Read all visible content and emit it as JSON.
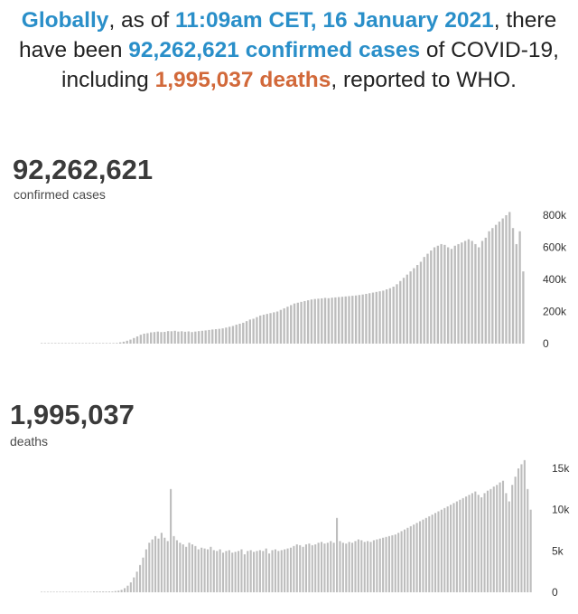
{
  "headline": {
    "globally": "Globally",
    "as_of": ", as of ",
    "datetime": "11:09am CET, 16 January 2021",
    "there_have_been": ", there have been ",
    "cases_text": "92,262,621 confirmed cases",
    "of_covid": " of COVID-19, including ",
    "deaths_text": "1,995,037 deaths",
    "reported": ", reported to WHO."
  },
  "colors": {
    "accent_blue": "#2a8fc9",
    "accent_orange": "#d2693a",
    "bar": "#bdbdbd"
  },
  "chart_data": [
    {
      "type": "bar",
      "title": "92,262,621",
      "subtitle": "confirmed cases",
      "ylim": [
        0,
        800000
      ],
      "yticks": [
        0,
        200000,
        400000,
        600000,
        800000
      ],
      "ytick_labels": [
        "0",
        "200k",
        "400k",
        "600k",
        "800k"
      ],
      "grid": false,
      "series": [
        {
          "values": [
            0,
            0,
            0,
            0,
            0,
            0,
            0,
            0,
            2000,
            3000,
            2000,
            1500,
            1500,
            1500,
            1000,
            1500,
            1500,
            1500,
            1500,
            1500,
            1500,
            3000,
            4000,
            8000,
            12000,
            18000,
            25000,
            35000,
            45000,
            55000,
            62000,
            65000,
            70000,
            72000,
            75000,
            72000,
            73000,
            78000,
            77000,
            80000,
            75000,
            77000,
            74000,
            76000,
            72000,
            75000,
            78000,
            80000,
            82000,
            85000,
            88000,
            90000,
            92000,
            95000,
            100000,
            105000,
            110000,
            118000,
            124000,
            130000,
            140000,
            150000,
            155000,
            165000,
            175000,
            180000,
            185000,
            190000,
            195000,
            200000,
            210000,
            220000,
            230000,
            240000,
            250000,
            255000,
            260000,
            265000,
            270000,
            275000,
            278000,
            280000,
            282000,
            285000,
            283000,
            286000,
            288000,
            290000,
            292000,
            294000,
            296000,
            298000,
            300000,
            303000,
            306000,
            310000,
            314000,
            318000,
            322000,
            326000,
            330000,
            338000,
            345000,
            355000,
            370000,
            390000,
            410000,
            430000,
            450000,
            470000,
            490000,
            510000,
            540000,
            560000,
            580000,
            600000,
            610000,
            620000,
            615000,
            600000,
            590000,
            610000,
            620000,
            630000,
            640000,
            650000,
            640000,
            620000,
            600000,
            640000,
            660000,
            700000,
            720000,
            740000,
            760000,
            780000,
            800000,
            820000,
            720000,
            620000,
            700000,
            450000
          ]
        }
      ]
    },
    {
      "type": "bar",
      "title": "1,995,037",
      "subtitle": "deaths",
      "ylim": [
        0,
        15000
      ],
      "yticks": [
        0,
        5000,
        10000,
        15000
      ],
      "ytick_labels": [
        "0",
        "5k",
        "10k",
        "15k"
      ],
      "grid": false,
      "series": [
        {
          "values": [
            0,
            0,
            0,
            0,
            0,
            0,
            0,
            0,
            0,
            0,
            0,
            0,
            0,
            0,
            0,
            0,
            0,
            100,
            100,
            100,
            100,
            100,
            100,
            100,
            150,
            200,
            300,
            500,
            800,
            1200,
            1800,
            2500,
            3300,
            4200,
            5200,
            6000,
            6400,
            6800,
            6500,
            7200,
            6600,
            6200,
            12500,
            6800,
            6300,
            6000,
            5800,
            5500,
            6000,
            5800,
            5600,
            5200,
            5400,
            5300,
            5200,
            5500,
            5100,
            5000,
            5200,
            4800,
            5000,
            5100,
            4800,
            4900,
            5000,
            5200,
            4600,
            5000,
            5100,
            4900,
            5000,
            5100,
            5000,
            5300,
            4700,
            5100,
            5200,
            5000,
            5100,
            5200,
            5300,
            5400,
            5600,
            5800,
            5700,
            5500,
            5800,
            5900,
            5700,
            5800,
            6000,
            6100,
            5900,
            6000,
            6200,
            6000,
            9000,
            6200,
            6000,
            5900,
            6100,
            6000,
            6200,
            6400,
            6300,
            6100,
            6200,
            6100,
            6300,
            6400,
            6500,
            6600,
            6700,
            6800,
            6900,
            7000,
            7200,
            7400,
            7600,
            7800,
            8000,
            8200,
            8400,
            8600,
            8800,
            9000,
            9200,
            9400,
            9600,
            9800,
            10000,
            10200,
            10400,
            10600,
            10800,
            11000,
            11200,
            11400,
            11600,
            11800,
            12000,
            12200,
            11800,
            11500,
            12000,
            12300,
            12500,
            12800,
            13000,
            13300,
            13500,
            12000,
            11000,
            13000,
            14000,
            15000,
            15500,
            16000,
            12500,
            10000
          ]
        }
      ]
    }
  ]
}
